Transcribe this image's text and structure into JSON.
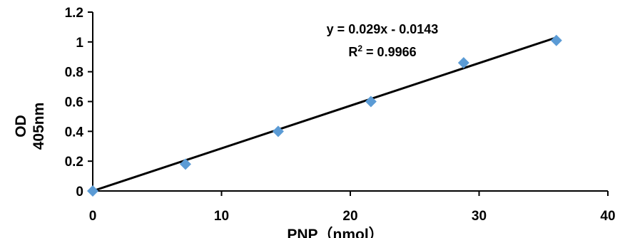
{
  "chart_data": {
    "type": "scatter",
    "title": "",
    "xlabel": "PNP（nmol）",
    "ylabel_lines": [
      "OD",
      "405nm"
    ],
    "xlim": [
      0,
      40
    ],
    "ylim": [
      0,
      1.2
    ],
    "x_ticks": [
      0,
      10,
      20,
      30,
      40
    ],
    "y_ticks": [
      0,
      0.2,
      0.4,
      0.6,
      0.8,
      1,
      1.2
    ],
    "x_tick_labels": [
      "0",
      "10",
      "20",
      "30",
      "40"
    ],
    "y_tick_labels": [
      "0",
      "0.2",
      "0.4",
      "0.6",
      "0.8",
      "1",
      "1.2"
    ],
    "grid": false,
    "legend": "none",
    "series": [
      {
        "marker": "diamond",
        "color": "#5b9bd5",
        "x": [
          0,
          7.2,
          14.4,
          21.6,
          28.8,
          36
        ],
        "y": [
          0,
          0.18,
          0.4,
          0.6,
          0.86,
          1.01
        ]
      }
    ],
    "trendline": {
      "type": "linear",
      "color": "#000000",
      "slope": 0.029,
      "intercept": -0.0143,
      "x_range": [
        0,
        36
      ],
      "equation_label": "y = 0.029x - 0.0143",
      "r2_prefix": "R",
      "r2_label": " = 0.9966"
    }
  }
}
